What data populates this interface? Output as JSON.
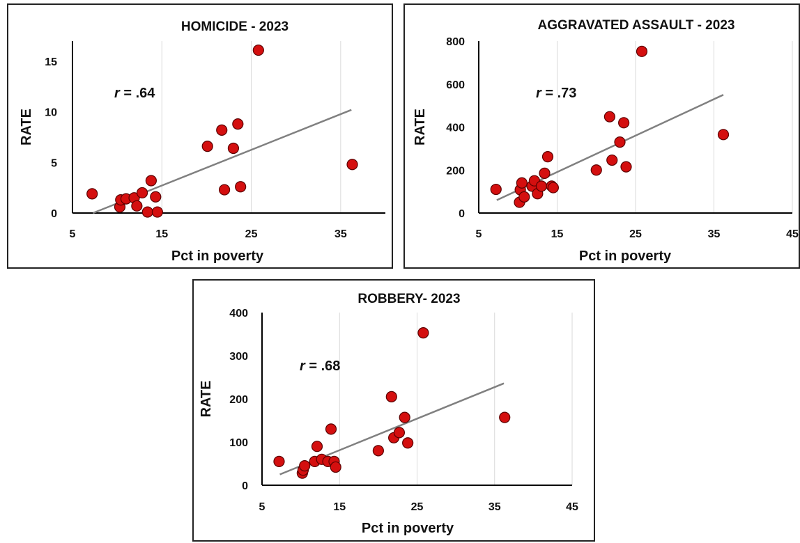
{
  "chart_data": [
    {
      "type": "scatter",
      "title": "HOMICIDE - 2023",
      "xlabel": "Pct in poverty",
      "ylabel": "RATE",
      "xlim": [
        5,
        40
      ],
      "ylim": [
        0,
        17
      ],
      "x_ticks": [
        "5",
        "15",
        "25",
        "35"
      ],
      "y_ticks": [
        "0",
        "5",
        "10",
        "15"
      ],
      "annotation": "r = .64",
      "grid": "vertical",
      "marker_color": "#d40f0f",
      "trendline_color": "#808080",
      "trendline": {
        "x": [
          7.3,
          36.2
        ],
        "y": [
          0.0,
          10.2
        ]
      },
      "series": [
        {
          "points": [
            {
              "x": 7.2,
              "y": 1.9
            },
            {
              "x": 10.3,
              "y": 0.6
            },
            {
              "x": 10.4,
              "y": 1.3
            },
            {
              "x": 11.0,
              "y": 1.4
            },
            {
              "x": 11.9,
              "y": 1.5
            },
            {
              "x": 12.2,
              "y": 0.7
            },
            {
              "x": 12.8,
              "y": 2.0
            },
            {
              "x": 13.4,
              "y": 0.1
            },
            {
              "x": 13.8,
              "y": 3.2
            },
            {
              "x": 14.3,
              "y": 1.6
            },
            {
              "x": 14.5,
              "y": 0.1
            },
            {
              "x": 20.1,
              "y": 6.6
            },
            {
              "x": 21.7,
              "y": 8.2
            },
            {
              "x": 22.0,
              "y": 2.3
            },
            {
              "x": 23.0,
              "y": 6.4
            },
            {
              "x": 23.5,
              "y": 8.8
            },
            {
              "x": 23.8,
              "y": 2.6
            },
            {
              "x": 25.8,
              "y": 16.1
            },
            {
              "x": 36.3,
              "y": 4.8
            }
          ]
        }
      ]
    },
    {
      "type": "scatter",
      "title": "AGGRAVATED ASSAULT - 2023",
      "xlabel": "Pct in poverty",
      "ylabel": "RATE",
      "xlim": [
        5,
        45
      ],
      "ylim": [
        0,
        800
      ],
      "x_ticks": [
        "5",
        "15",
        "25",
        "35",
        "45"
      ],
      "y_ticks": [
        "0",
        "200",
        "400",
        "600",
        "800"
      ],
      "annotation": "r = .73",
      "grid": "vertical",
      "marker_color": "#d40f0f",
      "trendline_color": "#808080",
      "trendline": {
        "x": [
          7.3,
          36.2
        ],
        "y": [
          60,
          550
        ]
      },
      "series": [
        {
          "points": [
            {
              "x": 7.2,
              "y": 110
            },
            {
              "x": 10.2,
              "y": 50
            },
            {
              "x": 10.3,
              "y": 108
            },
            {
              "x": 10.5,
              "y": 140
            },
            {
              "x": 10.8,
              "y": 75
            },
            {
              "x": 11.8,
              "y": 125
            },
            {
              "x": 12.1,
              "y": 150
            },
            {
              "x": 12.5,
              "y": 90
            },
            {
              "x": 13.0,
              "y": 125
            },
            {
              "x": 13.4,
              "y": 185
            },
            {
              "x": 13.8,
              "y": 262
            },
            {
              "x": 14.3,
              "y": 125
            },
            {
              "x": 14.5,
              "y": 118
            },
            {
              "x": 20.0,
              "y": 200
            },
            {
              "x": 21.7,
              "y": 448
            },
            {
              "x": 22.0,
              "y": 246
            },
            {
              "x": 23.0,
              "y": 330
            },
            {
              "x": 23.5,
              "y": 420
            },
            {
              "x": 23.8,
              "y": 215
            },
            {
              "x": 25.8,
              "y": 752
            },
            {
              "x": 36.2,
              "y": 365
            }
          ]
        }
      ]
    },
    {
      "type": "scatter",
      "title": "ROBBERY- 2023",
      "xlabel": "Pct in poverty",
      "ylabel": "RATE",
      "xlim": [
        5,
        45
      ],
      "ylim": [
        0,
        400
      ],
      "x_ticks": [
        "5",
        "15",
        "25",
        "35",
        "45"
      ],
      "y_ticks": [
        "0",
        "100",
        "200",
        "300",
        "400"
      ],
      "annotation": "r = .68",
      "grid": "vertical",
      "marker_color": "#d40f0f",
      "trendline_color": "#808080",
      "trendline": {
        "x": [
          7.3,
          36.2
        ],
        "y": [
          25,
          236
        ]
      },
      "series": [
        {
          "points": [
            {
              "x": 7.2,
              "y": 55
            },
            {
              "x": 10.2,
              "y": 28
            },
            {
              "x": 10.3,
              "y": 35
            },
            {
              "x": 10.5,
              "y": 45
            },
            {
              "x": 11.8,
              "y": 55
            },
            {
              "x": 12.1,
              "y": 90
            },
            {
              "x": 12.7,
              "y": 60
            },
            {
              "x": 13.5,
              "y": 55
            },
            {
              "x": 13.9,
              "y": 130
            },
            {
              "x": 14.3,
              "y": 55
            },
            {
              "x": 14.5,
              "y": 42
            },
            {
              "x": 20.0,
              "y": 80
            },
            {
              "x": 21.7,
              "y": 205
            },
            {
              "x": 22.0,
              "y": 110
            },
            {
              "x": 22.7,
              "y": 122
            },
            {
              "x": 23.4,
              "y": 157
            },
            {
              "x": 23.8,
              "y": 98
            },
            {
              "x": 25.8,
              "y": 353
            },
            {
              "x": 36.3,
              "y": 157
            }
          ]
        }
      ]
    }
  ]
}
